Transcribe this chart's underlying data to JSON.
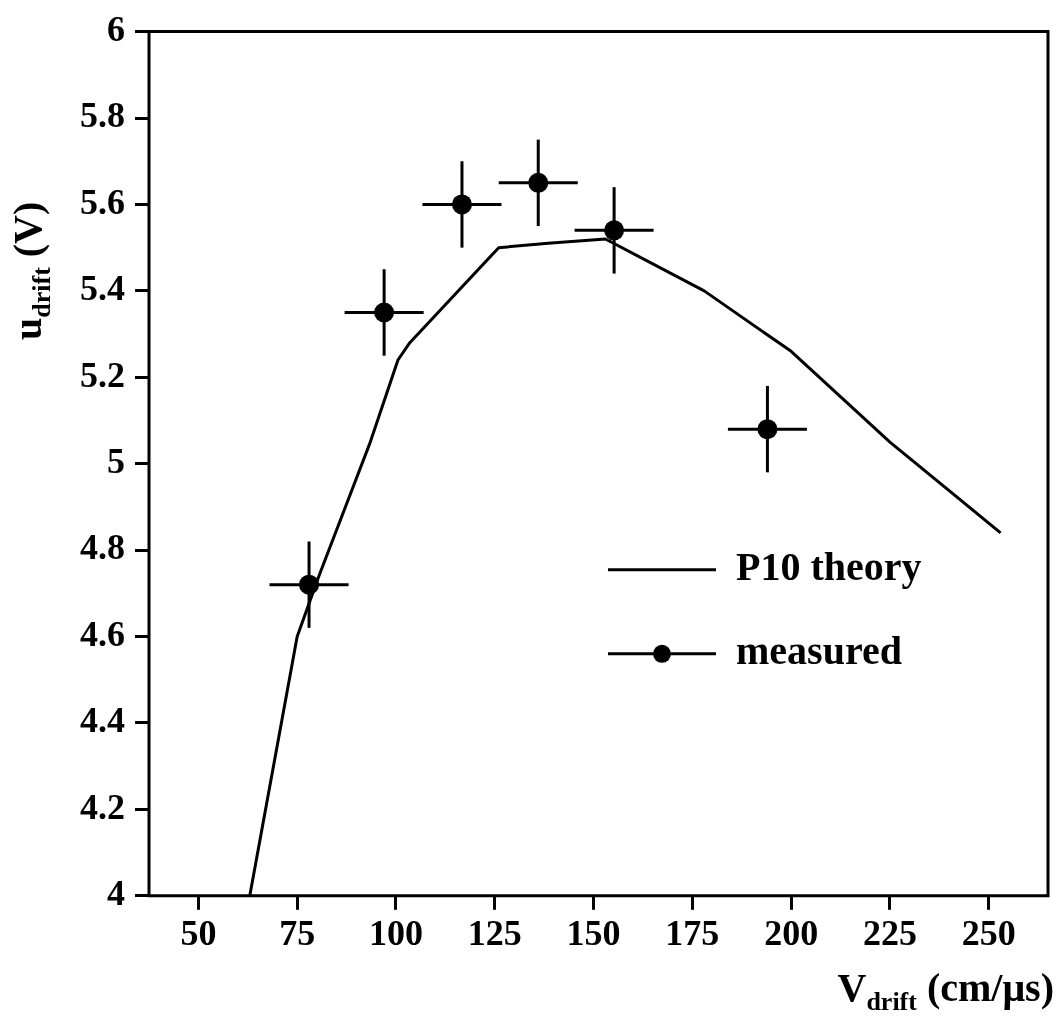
{
  "chart_data": {
    "type": "scatter",
    "xlabel": "V$_{drift}$ (cm/μs)",
    "ylabel": "u$_{drift}$ (V)",
    "xlim": [
      37.5,
      265
    ],
    "xticks": [
      50,
      75,
      100,
      125,
      150,
      175,
      200,
      225,
      250
    ],
    "ylim": [
      4,
      6
    ],
    "yticks": [
      4,
      4.2,
      4.4,
      4.6,
      4.8,
      5,
      5.2,
      5.4,
      5.6,
      5.8,
      6
    ],
    "grid": false,
    "legend": "bottom right",
    "series": [
      {
        "name": "P10 theory",
        "type": "line",
        "color": "#000000",
        "marker": "none",
        "line_style": "solid",
        "x": [
          63,
          75,
          80.5,
          93.5,
          100.5,
          103.5,
          126,
          138.5,
          153,
          178,
          200,
          225,
          253
        ],
        "values": [
          4.0,
          4.6,
          4.74,
          5.05,
          5.24,
          5.28,
          5.5,
          5.51,
          5.52,
          5.4,
          5.26,
          5.05,
          4.84
        ]
      },
      {
        "name": "measured",
        "type": "scatter",
        "color": "#000000",
        "marker": "circle",
        "x": [
          78,
          97,
          116.7,
          136,
          155.2,
          194
        ],
        "values": [
          4.72,
          5.35,
          5.6,
          5.65,
          5.54,
          5.08
        ],
        "errors": [
          0.1,
          0.1,
          0.1,
          0.1,
          0.1,
          0.1
        ],
        "xerrors": [
          10,
          10,
          10,
          10,
          10,
          10
        ]
      }
    ]
  }
}
